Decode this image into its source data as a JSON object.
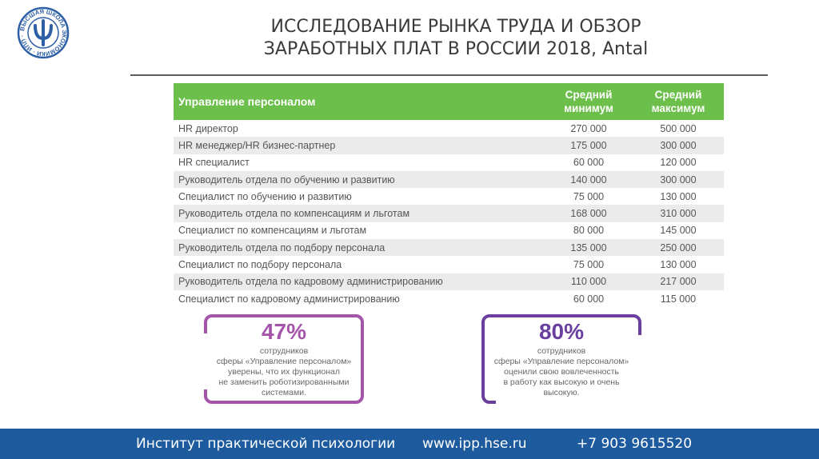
{
  "logo": {
    "ring_text": "ВЫСШАЯ ШКОЛА ЭКОНОМИКИ · ИПП ·",
    "colors": {
      "ring": "#2d5fa6",
      "glyph": "#2d5fa6"
    }
  },
  "title": {
    "line1": "ИССЛЕДОВАНИЕ РЫНКА ТРУДА И ОБЗОР",
    "line2": "ЗАРАБОТНЫХ ПЛАТ В РОССИИ 2018, Antal"
  },
  "table": {
    "header": {
      "name": "Управление персоналом",
      "min": "Средний\nминимум",
      "max": "Средний\nмаксимум"
    },
    "rows": [
      {
        "name": "HR директор",
        "min": "270 000",
        "max": "500 000"
      },
      {
        "name": "HR менеджер/HR бизнес-партнер",
        "min": "175 000",
        "max": "300 000"
      },
      {
        "name": "HR специалист",
        "min": "60 000",
        "max": "120 000"
      },
      {
        "name": "Руководитель отдела по обучению и развитию",
        "min": "140 000",
        "max": "300 000"
      },
      {
        "name": "Специалист по обучению и развитию",
        "min": "75 000",
        "max": "130 000"
      },
      {
        "name": "Руководитель отдела по компенсациям и льготам",
        "min": "168 000",
        "max": "310 000"
      },
      {
        "name": "Специалист по компенсациям и льготам",
        "min": "80 000",
        "max": "145 000"
      },
      {
        "name": "Руководитель отдела по подбору персонала",
        "min": "135 000",
        "max": "250 000"
      },
      {
        "name": "Специалист по подбору персонала",
        "min": "75 000",
        "max": "130 000"
      },
      {
        "name": "Руководитель отдела по кадровому администрированию",
        "min": "110 000",
        "max": "217 000"
      },
      {
        "name": "Специалист по кадровому администрированию",
        "min": "60 000",
        "max": "115 000"
      }
    ],
    "colors": {
      "header_bg": "#6cbf4a"
    }
  },
  "cards": [
    {
      "value": "47%",
      "text": "сотрудников\nсферы «Управление персоналом»\nуверены, что их функционал\nне заменить роботизированными\nсистемами.",
      "color": "#a454a9"
    },
    {
      "value": "80%",
      "text": "сотрудников\nсферы «Управление персоналом»\nоценили свою вовлеченность\nв работу как высокую и очень\nвысокую.",
      "color": "#6a3fa0"
    }
  ],
  "footer": {
    "institute": "Институт практической психологии",
    "website": "www.ipp.hse.ru",
    "phone": "+7 903 9615520",
    "colors": {
      "bg": "#1d5a9e"
    }
  }
}
